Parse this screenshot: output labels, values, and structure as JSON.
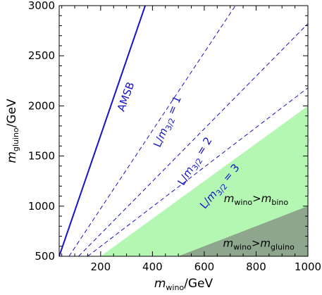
{
  "chart_data": {
    "type": "line",
    "xlabel_main": "m",
    "xlabel_sub": "wino",
    "xlabel_rest": "/GeV",
    "ylabel_main": "m",
    "ylabel_sub": "gluino",
    "ylabel_rest": "/GeV",
    "xlim": [
      40,
      1000
    ],
    "ylim": [
      500,
      3000
    ],
    "xticks": [
      200,
      400,
      600,
      800,
      1000
    ],
    "yticks": [
      500,
      1000,
      1500,
      2000,
      2500,
      3000
    ],
    "xtick_labels": [
      "200",
      "400",
      "600",
      "800",
      "1000"
    ],
    "ytick_labels": [
      "500",
      "1000",
      "1500",
      "2000",
      "2500",
      "3000"
    ],
    "colors": {
      "line": "#1515c8",
      "region_bino": "#b3f7b3",
      "region_gluino": "#8ea68e",
      "frame": "#000000"
    },
    "regions": [
      {
        "id": "wino-gt-bino",
        "label_m1": "m",
        "label_s1": "wino",
        "label_op": ">",
        "label_m2": "m",
        "label_s2": "bino",
        "label_at": [
          800,
          1040
        ],
        "polygon": [
          [
            200,
            500
          ],
          [
            1000,
            2000
          ],
          [
            1000,
            500
          ]
        ]
      },
      {
        "id": "wino-gt-gluino",
        "label_m1": "m",
        "label_s1": "wino",
        "label_op": ">",
        "label_m2": "m",
        "label_s2": "gluino",
        "label_at": [
          810,
          595
        ],
        "polygon": [
          [
            500,
            500
          ],
          [
            1000,
            1000
          ],
          [
            1000,
            500
          ]
        ]
      }
    ],
    "series": [
      {
        "id": "amsb",
        "name": "AMSB",
        "dashed": false,
        "x": [
          40,
          372
        ],
        "y": [
          500,
          3000
        ],
        "label_at": [
          310,
          2080
        ],
        "label_angle": -70
      },
      {
        "id": "l1",
        "name_main": "L/",
        "name_m": "m",
        "name_sub": "3/2",
        "name_rest": " = 1",
        "dashed": true,
        "x": [
          78,
          720
        ],
        "y": [
          500,
          3000
        ],
        "label_at": [
          470,
          1830
        ],
        "label_angle": -67
      },
      {
        "id": "l2",
        "name_main": "L/",
        "name_m": "m",
        "name_sub": "3/2",
        "name_rest": " = 2",
        "dashed": true,
        "x": [
          115,
          1000
        ],
        "y": [
          500,
          2820
        ],
        "label_at": [
          575,
          1430
        ],
        "label_angle": -58
      },
      {
        "id": "l3",
        "name_main": "L/",
        "name_m": "m",
        "name_sub": "3/2",
        "name_rest": " = 3",
        "dashed": true,
        "x": [
          150,
          1000
        ],
        "y": [
          500,
          2180
        ],
        "label_at": [
          670,
          1175
        ],
        "label_angle": -50
      }
    ]
  }
}
